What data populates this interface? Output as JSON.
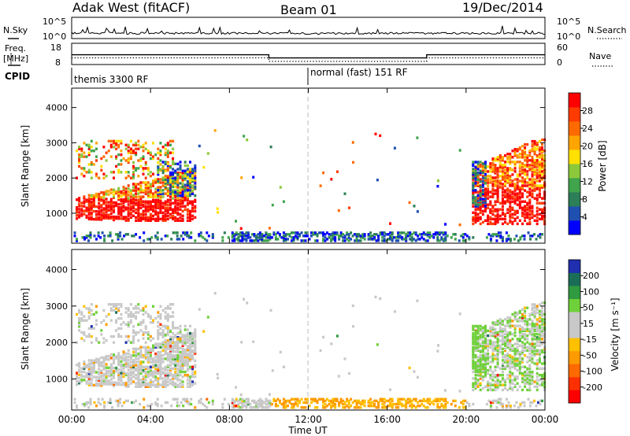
{
  "header": {
    "station": "Adak West (fitACF)",
    "beam": "Beam 01",
    "date": "19/Dec/2014"
  },
  "colors": {
    "power_scale": [
      "#0000ff",
      "#1f4fb0",
      "#2c7f58",
      "#3fa44c",
      "#8cc83a",
      "#ffe000",
      "#ffa500",
      "#ff6a00",
      "#ff3b00",
      "#ff0000"
    ],
    "velocity_scale": [
      "#1f2fb0",
      "#1a6e58",
      "#2f9a3f",
      "#6fd13a",
      "#c8c8c8",
      "#c8c8c8",
      "#ffc000",
      "#ff9a00",
      "#ff6a00",
      "#ff3000",
      "#ff0000"
    ],
    "velocity_ground": "#c8c8c8"
  },
  "labels": {
    "nsky": "N.Sky",
    "nsearch": "N.Search",
    "freq": "Freq.",
    "mhz": "[MHz]",
    "nave": "Nave",
    "cpid": "CPID",
    "cpid_1": "themis 3300 RF",
    "cpid_2": "normal (fast) 151 RF",
    "power_label": "Power [dB]",
    "velocity_label": "Velocity [m s⁻¹]",
    "slant_range": "Slant Range [km]",
    "time_ut": "Time UT"
  },
  "chart_data": [
    {
      "type": "line",
      "panel": "noise",
      "left_axis": {
        "label": "N.Sky",
        "ticks": [
          "10^5",
          "10^0"
        ]
      },
      "right_axis": {
        "label": "N.Search",
        "ticks": [
          "10^5",
          "10^0"
        ]
      },
      "x_range_hours": [
        0,
        24
      ]
    },
    {
      "type": "line",
      "panel": "frequency",
      "left_axis": {
        "label": "Freq. [MHz]",
        "ticks": [
          "18",
          "8"
        ]
      },
      "right_axis": {
        "label": "Nave",
        "ticks": [
          "60",
          "0"
        ]
      },
      "frequency_mhz": {
        "x": [
          0,
          10,
          10,
          18,
          18,
          24
        ],
        "y": [
          12.6,
          12.6,
          11.1,
          11.1,
          12.6,
          12.6
        ]
      },
      "nave": {
        "x": [
          0,
          10,
          10,
          18,
          18,
          24
        ],
        "y": [
          19,
          19,
          9,
          9,
          19,
          19
        ]
      }
    },
    {
      "type": "heatmap",
      "panel": "power",
      "ylabel": "Slant Range [km]",
      "yticks": [
        1000,
        2000,
        3000,
        4000
      ],
      "ylim": [
        150,
        4550
      ],
      "colorbar": {
        "label": "Power [dB]",
        "ticks": [
          4,
          8,
          12,
          16,
          20,
          24,
          28
        ],
        "range": [
          0,
          32
        ]
      },
      "regions": [
        {
          "t": [
            0.0,
            6.4
          ],
          "r": [
            800,
            3000
          ],
          "value": "scatter"
        },
        {
          "t": [
            20.3,
            24.0
          ],
          "r": [
            800,
            3100
          ],
          "value": "scatter"
        },
        {
          "t": [
            0.0,
            24.0
          ],
          "r": [
            200,
            450
          ],
          "value": "ground"
        }
      ]
    },
    {
      "type": "heatmap",
      "panel": "velocity",
      "ylabel": "Slant Range [km]",
      "xlabel": "Time UT",
      "yticks": [
        1000,
        2000,
        3000,
        4000
      ],
      "ylim": [
        150,
        4550
      ],
      "xticks": [
        "00:00",
        "04:00",
        "08:00",
        "12:00",
        "16:00",
        "20:00",
        "00:00"
      ],
      "xlim_hours": [
        0,
        24
      ],
      "colorbar": {
        "label": "Velocity [m s⁻¹]",
        "ticks": [
          200,
          100,
          50,
          15,
          -15,
          -50,
          -100,
          -200
        ]
      }
    }
  ]
}
